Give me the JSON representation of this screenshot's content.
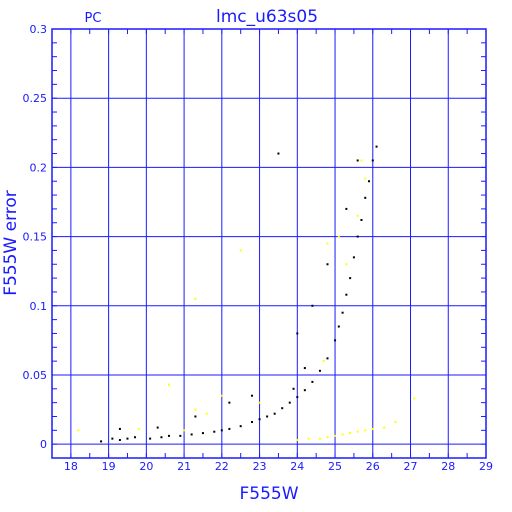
{
  "chart_data": {
    "type": "scatter",
    "title": "lmc_u63s05",
    "corner_label": "PC",
    "xlabel": "F555W",
    "ylabel": "F555W error",
    "xlim": [
      17.5,
      29
    ],
    "ylim": [
      -0.01,
      0.3
    ],
    "x_ticks": [
      "18",
      "19",
      "20",
      "21",
      "22",
      "23",
      "24",
      "25",
      "26",
      "27",
      "28",
      "29"
    ],
    "y_ticks": [
      "0",
      "0.05",
      "0.1",
      "0.15",
      "0.2",
      "0.25",
      "0.3"
    ],
    "grid": true,
    "colors": {
      "axis": "#1a1aff",
      "primary": "#000000",
      "secondary": "#ffff00"
    },
    "series": [
      {
        "color": "#000000",
        "points": [
          [
            18.8,
            0.002
          ],
          [
            19.1,
            0.004
          ],
          [
            19.3,
            0.011
          ],
          [
            19.3,
            0.003
          ],
          [
            19.5,
            0.004
          ],
          [
            19.7,
            0.005
          ],
          [
            20.1,
            0.004
          ],
          [
            20.4,
            0.005
          ],
          [
            20.6,
            0.006
          ],
          [
            20.9,
            0.006
          ],
          [
            21.2,
            0.007
          ],
          [
            21.5,
            0.008
          ],
          [
            21.8,
            0.009
          ],
          [
            22.0,
            0.01
          ],
          [
            22.2,
            0.011
          ],
          [
            22.5,
            0.013
          ],
          [
            22.8,
            0.016
          ],
          [
            23.0,
            0.018
          ],
          [
            23.2,
            0.02
          ],
          [
            23.4,
            0.022
          ],
          [
            23.6,
            0.026
          ],
          [
            23.8,
            0.03
          ],
          [
            24.0,
            0.034
          ],
          [
            24.2,
            0.039
          ],
          [
            24.4,
            0.045
          ],
          [
            24.6,
            0.053
          ],
          [
            24.8,
            0.062
          ],
          [
            25.0,
            0.075
          ],
          [
            25.1,
            0.085
          ],
          [
            25.2,
            0.095
          ],
          [
            25.3,
            0.108
          ],
          [
            25.4,
            0.12
          ],
          [
            25.5,
            0.135
          ],
          [
            25.6,
            0.15
          ],
          [
            25.7,
            0.162
          ],
          [
            25.8,
            0.178
          ],
          [
            25.9,
            0.19
          ],
          [
            26.0,
            0.205
          ],
          [
            26.1,
            0.215
          ],
          [
            23.5,
            0.21
          ],
          [
            24.8,
            0.13
          ],
          [
            25.6,
            0.205
          ],
          [
            24.2,
            0.055
          ],
          [
            23.9,
            0.04
          ],
          [
            24.4,
            0.1
          ],
          [
            22.2,
            0.03
          ],
          [
            20.3,
            0.012
          ],
          [
            21.3,
            0.02
          ],
          [
            22.8,
            0.035
          ],
          [
            24.0,
            0.08
          ],
          [
            25.3,
            0.17
          ]
        ]
      },
      {
        "color": "#ffff00",
        "points": [
          [
            18.2,
            0.01
          ],
          [
            19.8,
            0.011
          ],
          [
            20.6,
            0.043
          ],
          [
            21.0,
            0.01
          ],
          [
            21.3,
            0.105
          ],
          [
            21.3,
            0.025
          ],
          [
            21.6,
            0.022
          ],
          [
            22.0,
            0.035
          ],
          [
            22.5,
            0.14
          ],
          [
            23.0,
            0.03
          ],
          [
            24.0,
            0.003
          ],
          [
            24.3,
            0.004
          ],
          [
            24.6,
            0.004
          ],
          [
            24.8,
            0.005
          ],
          [
            25.0,
            0.006
          ],
          [
            25.2,
            0.007
          ],
          [
            25.4,
            0.008
          ],
          [
            25.6,
            0.009
          ],
          [
            25.8,
            0.01
          ],
          [
            26.0,
            0.011
          ],
          [
            26.3,
            0.012
          ],
          [
            26.6,
            0.016
          ],
          [
            27.1,
            0.033
          ],
          [
            24.8,
            0.145
          ],
          [
            25.1,
            0.15
          ],
          [
            25.3,
            0.13
          ],
          [
            25.6,
            0.165
          ],
          [
            25.8,
            0.192
          ],
          [
            25.7,
            0.205
          ],
          [
            24.7,
            0.06
          ]
        ]
      }
    ]
  }
}
